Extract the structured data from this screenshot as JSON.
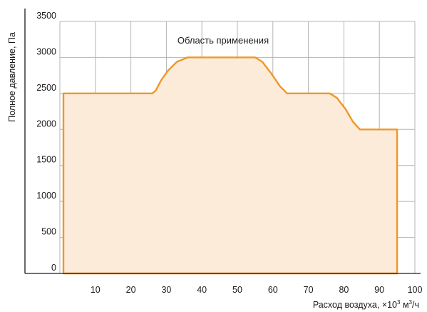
{
  "chart_data": {
    "type": "area",
    "ylabel": "Полное давление, Па",
    "xlabel": "Расход воздуха, ×10",
    "xlabel_sup": "3",
    "xlabel_unit": " м",
    "xlabel_unit_sup": "3",
    "xlabel_tail": "/ч",
    "annotation": "Область применения",
    "x_ticks": [
      "10",
      "20",
      "30",
      "40",
      "50",
      "60",
      "70",
      "80",
      "90",
      "100"
    ],
    "y_ticks": [
      "0",
      "500",
      "1000",
      "1500",
      "2000",
      "2500",
      "3000",
      "3500"
    ],
    "xlim": [
      0,
      100
    ],
    "ylim": [
      0,
      3500
    ],
    "grid": true,
    "series": [
      {
        "fill_color": "#fdebd9",
        "line_color": "#f0962a",
        "x": [
          1,
          1,
          26,
          27,
          28.5,
          30.5,
          33,
          36,
          55,
          57,
          59.5,
          62,
          64,
          76,
          78,
          80.5,
          82.5,
          84.5,
          95,
          95
        ],
        "y": [
          0,
          2500,
          2500,
          2540,
          2680,
          2820,
          2940,
          3000,
          3000,
          2940,
          2780,
          2600,
          2500,
          2500,
          2440,
          2280,
          2110,
          2000,
          2000,
          0
        ]
      }
    ],
    "colors": {
      "grid": "#b4b4b4",
      "axis": "#1a1a1a"
    }
  }
}
